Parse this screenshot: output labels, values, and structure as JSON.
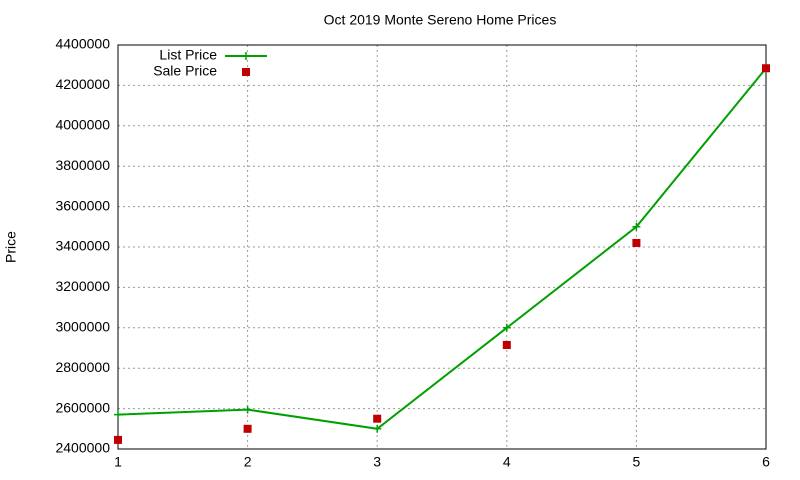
{
  "chart_data": {
    "type": "line",
    "title": "Oct 2019 Monte Sereno Home Prices",
    "y_label": "Price",
    "x": [
      1,
      2,
      3,
      4,
      5,
      6
    ],
    "series": [
      {
        "name": "List Price",
        "color": "#00a000",
        "style": "line-points",
        "values": [
          2570000,
          2595000,
          2500000,
          3000000,
          3500000,
          4285000
        ]
      },
      {
        "name": "Sale Price",
        "color": "#c00000",
        "style": "points",
        "values": [
          2445000,
          2500000,
          2550000,
          2915000,
          3420000,
          4285000
        ]
      }
    ],
    "xlim": [
      1,
      6
    ],
    "xticks": [
      1,
      2,
      3,
      4,
      5,
      6
    ],
    "ylim": [
      2400000,
      4400000
    ],
    "yticks": [
      2400000,
      2600000,
      2800000,
      3000000,
      3200000,
      3400000,
      3600000,
      3800000,
      4000000,
      4200000,
      4400000
    ],
    "grid": true,
    "legend": "top-left"
  }
}
